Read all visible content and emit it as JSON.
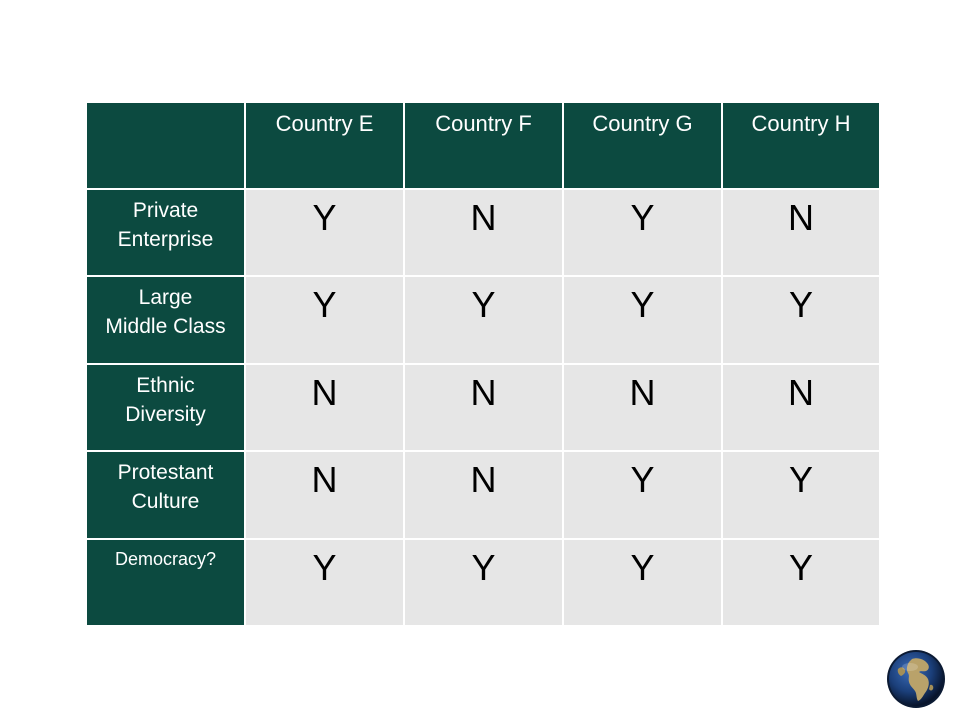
{
  "table": {
    "columns": [
      "Country E",
      "Country F",
      "Country G",
      "Country H"
    ],
    "rows": [
      {
        "label_lines": [
          "Private",
          "Enterprise"
        ],
        "values": [
          "Y",
          "N",
          "Y",
          "N"
        ]
      },
      {
        "label_lines": [
          "Large",
          "Middle Class"
        ],
        "values": [
          "Y",
          "Y",
          "Y",
          "Y"
        ]
      },
      {
        "label_lines": [
          "Ethnic",
          "Diversity"
        ],
        "values": [
          "N",
          "N",
          "N",
          "N"
        ]
      },
      {
        "label_lines": [
          "Protestant",
          "Culture"
        ],
        "values": [
          "N",
          "N",
          "Y",
          "Y"
        ]
      },
      {
        "label_lines": [
          "Democracy?"
        ],
        "values": [
          "Y",
          "Y",
          "Y",
          "Y"
        ]
      }
    ]
  },
  "logo": {
    "icon": "globe-icon",
    "colors": {
      "ocean": "#1b3f7a",
      "land": "#b9a26a",
      "rim": "#0b1a33"
    }
  },
  "colors": {
    "header_bg": "#0c4a40",
    "cell_bg": "#e6e6e6",
    "header_text": "#ffffff"
  }
}
